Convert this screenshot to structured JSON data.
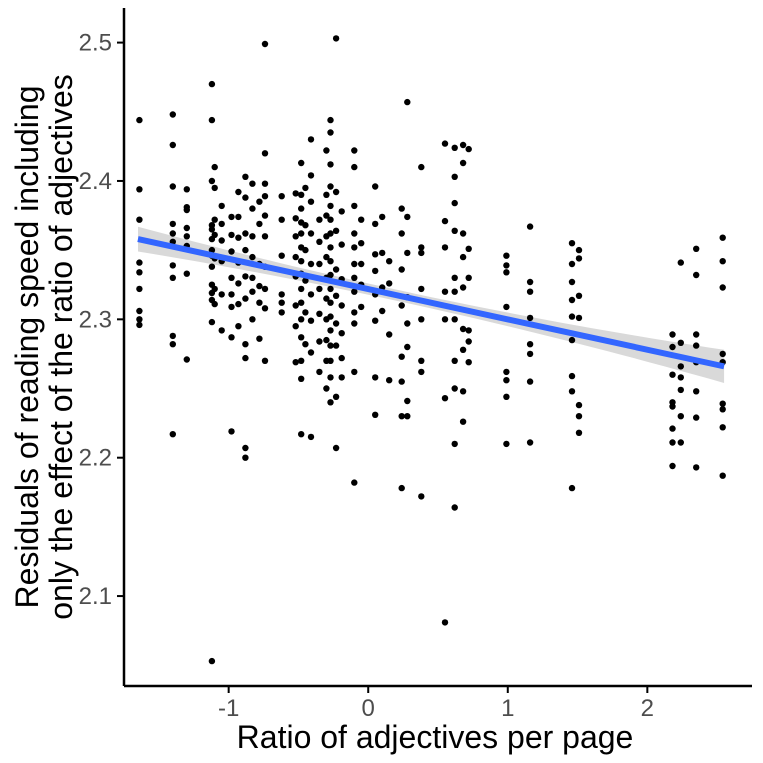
{
  "chart_data": {
    "type": "scatter",
    "xlabel": "Ratio of adjectives per page",
    "ylabel_lines": [
      "Residuals of reading speed including",
      "only the effect of the ratio of adjectives"
    ],
    "xlim": [
      -1.75,
      2.75
    ],
    "ylim": [
      2.035,
      2.525
    ],
    "x_ticks": [
      -1,
      0,
      1,
      2
    ],
    "y_ticks": [
      2.1,
      2.2,
      2.3,
      2.4,
      2.5
    ],
    "x_tick_labels": [
      "-1",
      "0",
      "1",
      "2"
    ],
    "y_tick_labels": [
      "2.1",
      "2.2",
      "2.3",
      "2.4",
      "2.5"
    ],
    "grid": false,
    "colors": {
      "points": "#000000",
      "fit_line": "#3366ff",
      "ci_band": "#d9d9d9",
      "axis": "#000000",
      "tick_label": "#4d4d4d"
    },
    "fit": {
      "type": "linear",
      "x_start": -1.65,
      "x_end": 2.55,
      "y_start": 2.358,
      "y_end": 2.266,
      "ci_half_width_ends": 0.012,
      "ci_half_width_center": 0.004,
      "ci_center_x": 0.2
    },
    "points": [
      [
        -1.64,
        2.444
      ],
      [
        -1.64,
        2.394
      ],
      [
        -1.64,
        2.372
      ],
      [
        -1.64,
        2.341
      ],
      [
        -1.64,
        2.334
      ],
      [
        -1.64,
        2.322
      ],
      [
        -1.64,
        2.306
      ],
      [
        -1.64,
        2.3
      ],
      [
        -1.64,
        2.296
      ],
      [
        -1.4,
        2.448
      ],
      [
        -1.4,
        2.426
      ],
      [
        -1.4,
        2.396
      ],
      [
        -1.4,
        2.369
      ],
      [
        -1.4,
        2.362
      ],
      [
        -1.4,
        2.356
      ],
      [
        -1.4,
        2.339
      ],
      [
        -1.4,
        2.33
      ],
      [
        -1.4,
        2.288
      ],
      [
        -1.4,
        2.282
      ],
      [
        -1.4,
        2.217
      ],
      [
        -1.3,
        2.394
      ],
      [
        -1.3,
        2.381
      ],
      [
        -1.3,
        2.379
      ],
      [
        -1.3,
        2.366
      ],
      [
        -1.3,
        2.36
      ],
      [
        -1.3,
        2.353
      ],
      [
        -1.3,
        2.333
      ],
      [
        -1.3,
        2.271
      ],
      [
        -1.12,
        2.47
      ],
      [
        -1.12,
        2.444
      ],
      [
        -1.12,
        2.4
      ],
      [
        -1.12,
        2.368
      ],
      [
        -1.12,
        2.365
      ],
      [
        -1.12,
        2.358
      ],
      [
        -1.12,
        2.35
      ],
      [
        -1.12,
        2.346
      ],
      [
        -1.12,
        2.338
      ],
      [
        -1.12,
        2.325
      ],
      [
        -1.12,
        2.319
      ],
      [
        -1.12,
        2.314
      ],
      [
        -1.12,
        2.298
      ],
      [
        -1.12,
        2.053
      ],
      [
        -1.1,
        2.41
      ],
      [
        -1.1,
        2.395
      ],
      [
        -1.1,
        2.372
      ],
      [
        -1.1,
        2.361
      ],
      [
        -1.1,
        2.344
      ],
      [
        -1.1,
        2.322
      ],
      [
        -1.1,
        2.311
      ],
      [
        -1.05,
        2.382
      ],
      [
        -1.05,
        2.369
      ],
      [
        -1.05,
        2.357
      ],
      [
        -1.05,
        2.342
      ],
      [
        -1.05,
        2.318
      ],
      [
        -1.05,
        2.292
      ],
      [
        -0.98,
        2.374
      ],
      [
        -0.98,
        2.361
      ],
      [
        -0.98,
        2.349
      ],
      [
        -0.98,
        2.33
      ],
      [
        -0.98,
        2.318
      ],
      [
        -0.98,
        2.309
      ],
      [
        -0.98,
        2.287
      ],
      [
        -0.98,
        2.219
      ],
      [
        -0.93,
        2.392
      ],
      [
        -0.93,
        2.374
      ],
      [
        -0.93,
        2.359
      ],
      [
        -0.93,
        2.341
      ],
      [
        -0.93,
        2.326
      ],
      [
        -0.93,
        2.311
      ],
      [
        -0.93,
        2.295
      ],
      [
        -0.88,
        2.403
      ],
      [
        -0.88,
        2.388
      ],
      [
        -0.88,
        2.362
      ],
      [
        -0.88,
        2.35
      ],
      [
        -0.88,
        2.331
      ],
      [
        -0.88,
        2.315
      ],
      [
        -0.88,
        2.282
      ],
      [
        -0.88,
        2.272
      ],
      [
        -0.88,
        2.207
      ],
      [
        -0.88,
        2.2
      ],
      [
        -0.83,
        2.398
      ],
      [
        -0.83,
        2.38
      ],
      [
        -0.83,
        2.36
      ],
      [
        -0.83,
        2.345
      ],
      [
        -0.83,
        2.33
      ],
      [
        -0.83,
        2.32
      ],
      [
        -0.83,
        2.3
      ],
      [
        -0.78,
        2.385
      ],
      [
        -0.78,
        2.369
      ],
      [
        -0.78,
        2.34
      ],
      [
        -0.78,
        2.324
      ],
      [
        -0.78,
        2.312
      ],
      [
        -0.78,
        2.286
      ],
      [
        -0.74,
        2.499
      ],
      [
        -0.74,
        2.42
      ],
      [
        -0.74,
        2.398
      ],
      [
        -0.74,
        2.389
      ],
      [
        -0.74,
        2.375
      ],
      [
        -0.74,
        2.36
      ],
      [
        -0.74,
        2.338
      ],
      [
        -0.74,
        2.322
      ],
      [
        -0.74,
        2.308
      ],
      [
        -0.74,
        2.27
      ],
      [
        -0.62,
        2.389
      ],
      [
        -0.62,
        2.372
      ],
      [
        -0.62,
        2.346
      ],
      [
        -0.62,
        2.318
      ],
      [
        -0.62,
        2.312
      ],
      [
        -0.62,
        2.305
      ],
      [
        -0.52,
        2.391
      ],
      [
        -0.52,
        2.373
      ],
      [
        -0.52,
        2.36
      ],
      [
        -0.52,
        2.345
      ],
      [
        -0.52,
        2.331
      ],
      [
        -0.52,
        2.31
      ],
      [
        -0.52,
        2.295
      ],
      [
        -0.52,
        2.269
      ],
      [
        -0.48,
        2.413
      ],
      [
        -0.48,
        2.39
      ],
      [
        -0.48,
        2.38
      ],
      [
        -0.48,
        2.37
      ],
      [
        -0.48,
        2.362
      ],
      [
        -0.48,
        2.352
      ],
      [
        -0.48,
        2.342
      ],
      [
        -0.48,
        2.333
      ],
      [
        -0.48,
        2.322
      ],
      [
        -0.48,
        2.312
      ],
      [
        -0.48,
        2.3
      ],
      [
        -0.48,
        2.287
      ],
      [
        -0.48,
        2.27
      ],
      [
        -0.48,
        2.257
      ],
      [
        -0.48,
        2.217
      ],
      [
        -0.45,
        2.395
      ],
      [
        -0.45,
        2.368
      ],
      [
        -0.45,
        2.35
      ],
      [
        -0.45,
        2.328
      ],
      [
        -0.45,
        2.305
      ],
      [
        -0.45,
        2.282
      ],
      [
        -0.41,
        2.43
      ],
      [
        -0.41,
        2.404
      ],
      [
        -0.41,
        2.385
      ],
      [
        -0.41,
        2.362
      ],
      [
        -0.41,
        2.34
      ],
      [
        -0.41,
        2.318
      ],
      [
        -0.41,
        2.299
      ],
      [
        -0.41,
        2.276
      ],
      [
        -0.41,
        2.215
      ],
      [
        -0.35,
        2.372
      ],
      [
        -0.35,
        2.356
      ],
      [
        -0.35,
        2.34
      ],
      [
        -0.35,
        2.322
      ],
      [
        -0.35,
        2.304
      ],
      [
        -0.35,
        2.284
      ],
      [
        -0.35,
        2.262
      ],
      [
        -0.3,
        2.422
      ],
      [
        -0.3,
        2.39
      ],
      [
        -0.3,
        2.375
      ],
      [
        -0.3,
        2.36
      ],
      [
        -0.3,
        2.345
      ],
      [
        -0.3,
        2.33
      ],
      [
        -0.3,
        2.315
      ],
      [
        -0.3,
        2.3
      ],
      [
        -0.3,
        2.285
      ],
      [
        -0.3,
        2.27
      ],
      [
        -0.3,
        2.25
      ],
      [
        -0.27,
        2.444
      ],
      [
        -0.27,
        2.435
      ],
      [
        -0.27,
        2.412
      ],
      [
        -0.27,
        2.396
      ],
      [
        -0.27,
        2.382
      ],
      [
        -0.27,
        2.372
      ],
      [
        -0.27,
        2.362
      ],
      [
        -0.27,
        2.352
      ],
      [
        -0.27,
        2.342
      ],
      [
        -0.27,
        2.332
      ],
      [
        -0.27,
        2.322
      ],
      [
        -0.27,
        2.312
      ],
      [
        -0.27,
        2.302
      ],
      [
        -0.27,
        2.292
      ],
      [
        -0.27,
        2.281
      ],
      [
        -0.27,
        2.27
      ],
      [
        -0.27,
        2.258
      ],
      [
        -0.27,
        2.24
      ],
      [
        -0.23,
        2.503
      ],
      [
        -0.23,
        2.392
      ],
      [
        -0.23,
        2.364
      ],
      [
        -0.23,
        2.336
      ],
      [
        -0.23,
        2.317
      ],
      [
        -0.23,
        2.297
      ],
      [
        -0.23,
        2.281
      ],
      [
        -0.23,
        2.244
      ],
      [
        -0.23,
        2.207
      ],
      [
        -0.19,
        2.378
      ],
      [
        -0.19,
        2.354
      ],
      [
        -0.19,
        2.329
      ],
      [
        -0.19,
        2.31
      ],
      [
        -0.19,
        2.29
      ],
      [
        -0.19,
        2.272
      ],
      [
        -0.19,
        2.258
      ],
      [
        -0.1,
        2.422
      ],
      [
        -0.1,
        2.41
      ],
      [
        -0.1,
        2.382
      ],
      [
        -0.1,
        2.362
      ],
      [
        -0.1,
        2.352
      ],
      [
        -0.1,
        2.34
      ],
      [
        -0.1,
        2.33
      ],
      [
        -0.1,
        2.32
      ],
      [
        -0.1,
        2.305
      ],
      [
        -0.1,
        2.297
      ],
      [
        -0.1,
        2.262
      ],
      [
        -0.1,
        2.182
      ],
      [
        -0.05,
        2.372
      ],
      [
        -0.05,
        2.355
      ],
      [
        -0.05,
        2.34
      ],
      [
        -0.05,
        2.325
      ],
      [
        -0.05,
        2.309
      ],
      [
        0.05,
        2.396
      ],
      [
        0.05,
        2.369
      ],
      [
        0.05,
        2.347
      ],
      [
        0.05,
        2.335
      ],
      [
        0.05,
        2.318
      ],
      [
        0.05,
        2.299
      ],
      [
        0.05,
        2.258
      ],
      [
        0.05,
        2.231
      ],
      [
        0.1,
        2.374
      ],
      [
        0.1,
        2.348
      ],
      [
        0.1,
        2.323
      ],
      [
        0.1,
        2.306
      ],
      [
        0.15,
        2.342
      ],
      [
        0.15,
        2.326
      ],
      [
        0.15,
        2.289
      ],
      [
        0.15,
        2.256
      ],
      [
        0.24,
        2.38
      ],
      [
        0.24,
        2.362
      ],
      [
        0.24,
        2.336
      ],
      [
        0.24,
        2.31
      ],
      [
        0.24,
        2.273
      ],
      [
        0.24,
        2.255
      ],
      [
        0.24,
        2.23
      ],
      [
        0.24,
        2.178
      ],
      [
        0.28,
        2.457
      ],
      [
        0.28,
        2.374
      ],
      [
        0.28,
        2.348
      ],
      [
        0.28,
        2.316
      ],
      [
        0.28,
        2.297
      ],
      [
        0.28,
        2.28
      ],
      [
        0.28,
        2.241
      ],
      [
        0.28,
        2.23
      ],
      [
        0.38,
        2.41
      ],
      [
        0.38,
        2.352
      ],
      [
        0.38,
        2.348
      ],
      [
        0.38,
        2.322
      ],
      [
        0.38,
        2.3
      ],
      [
        0.38,
        2.27
      ],
      [
        0.38,
        2.262
      ],
      [
        0.38,
        2.172
      ],
      [
        0.55,
        2.427
      ],
      [
        0.55,
        2.371
      ],
      [
        0.55,
        2.352
      ],
      [
        0.55,
        2.32
      ],
      [
        0.55,
        2.3
      ],
      [
        0.55,
        2.243
      ],
      [
        0.55,
        2.081
      ],
      [
        0.62,
        2.424
      ],
      [
        0.62,
        2.403
      ],
      [
        0.62,
        2.384
      ],
      [
        0.62,
        2.364
      ],
      [
        0.62,
        2.33
      ],
      [
        0.62,
        2.32
      ],
      [
        0.62,
        2.3
      ],
      [
        0.62,
        2.27
      ],
      [
        0.62,
        2.25
      ],
      [
        0.62,
        2.21
      ],
      [
        0.62,
        2.164
      ],
      [
        0.68,
        2.426
      ],
      [
        0.68,
        2.413
      ],
      [
        0.68,
        2.362
      ],
      [
        0.68,
        2.345
      ],
      [
        0.68,
        2.323
      ],
      [
        0.68,
        2.293
      ],
      [
        0.68,
        2.278
      ],
      [
        0.68,
        2.248
      ],
      [
        0.68,
        2.226
      ],
      [
        0.72,
        2.423
      ],
      [
        0.72,
        2.351
      ],
      [
        0.72,
        2.33
      ],
      [
        0.72,
        2.292
      ],
      [
        0.72,
        2.284
      ],
      [
        0.72,
        2.269
      ],
      [
        0.99,
        2.346
      ],
      [
        0.99,
        2.339
      ],
      [
        0.99,
        2.334
      ],
      [
        0.99,
        2.309
      ],
      [
        0.99,
        2.262
      ],
      [
        0.99,
        2.256
      ],
      [
        0.99,
        2.244
      ],
      [
        0.99,
        2.21
      ],
      [
        1.16,
        2.367
      ],
      [
        1.16,
        2.327
      ],
      [
        1.16,
        2.32
      ],
      [
        1.16,
        2.301
      ],
      [
        1.16,
        2.282
      ],
      [
        1.16,
        2.275
      ],
      [
        1.16,
        2.255
      ],
      [
        1.16,
        2.211
      ],
      [
        1.46,
        2.355
      ],
      [
        1.46,
        2.34
      ],
      [
        1.46,
        2.327
      ],
      [
        1.46,
        2.314
      ],
      [
        1.46,
        2.302
      ],
      [
        1.46,
        2.285
      ],
      [
        1.46,
        2.259
      ],
      [
        1.46,
        2.248
      ],
      [
        1.46,
        2.178
      ],
      [
        1.51,
        2.35
      ],
      [
        1.51,
        2.344
      ],
      [
        1.51,
        2.317
      ],
      [
        1.51,
        2.301
      ],
      [
        1.51,
        2.238
      ],
      [
        1.51,
        2.23
      ],
      [
        1.51,
        2.218
      ],
      [
        2.18,
        2.289
      ],
      [
        2.18,
        2.28
      ],
      [
        2.18,
        2.26
      ],
      [
        2.18,
        2.24
      ],
      [
        2.18,
        2.237
      ],
      [
        2.18,
        2.221
      ],
      [
        2.18,
        2.211
      ],
      [
        2.18,
        2.194
      ],
      [
        2.24,
        2.341
      ],
      [
        2.24,
        2.283
      ],
      [
        2.24,
        2.266
      ],
      [
        2.24,
        2.258
      ],
      [
        2.24,
        2.249
      ],
      [
        2.24,
        2.23
      ],
      [
        2.24,
        2.211
      ],
      [
        2.35,
        2.351
      ],
      [
        2.35,
        2.332
      ],
      [
        2.35,
        2.289
      ],
      [
        2.35,
        2.281
      ],
      [
        2.35,
        2.269
      ],
      [
        2.35,
        2.248
      ],
      [
        2.35,
        2.229
      ],
      [
        2.35,
        2.193
      ],
      [
        2.54,
        2.359
      ],
      [
        2.54,
        2.342
      ],
      [
        2.54,
        2.323
      ],
      [
        2.54,
        2.275
      ],
      [
        2.54,
        2.269
      ],
      [
        2.54,
        2.239
      ],
      [
        2.54,
        2.235
      ],
      [
        2.54,
        2.222
      ],
      [
        2.54,
        2.187
      ]
    ]
  }
}
